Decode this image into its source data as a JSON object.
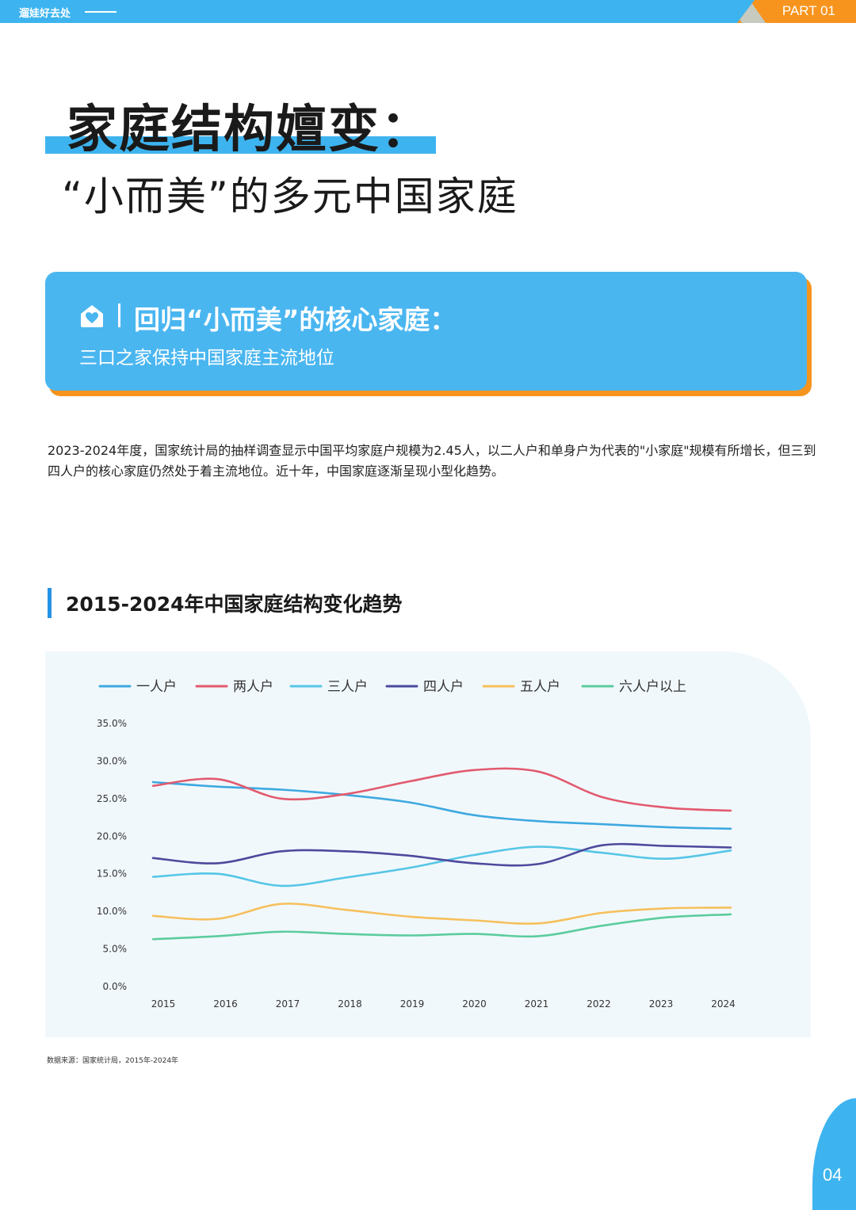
{
  "header": {
    "brand": "遛娃好去处",
    "part_label": "PART 01"
  },
  "title": {
    "main": "家庭结构嬗变：",
    "sub": "“小而美”的多元中国家庭"
  },
  "card": {
    "icon": "house-heart-icon",
    "title": "回归“小而美”的核心家庭：",
    "subtitle": "三口之家保持中国家庭主流地位"
  },
  "body_text": "2023-2024年度，国家统计局的抽样调查显示中国平均家庭户规模为2.45人，以二人户和单身户为代表的\"小家庭\"规模有所增长，但三到四人户的核心家庭仍然处于着主流地位。近十年，中国家庭逐渐呈现小型化趋势。",
  "section_title": "2015-2024年中国家庭结构变化趋势",
  "source": "数据来源：国家统计局，2015年-2024年",
  "page_number": "04",
  "colors": {
    "primary": "#3db4ef",
    "accent": "#f7941d"
  },
  "chart_data": {
    "type": "line",
    "title": "",
    "xlabel": "",
    "ylabel": "",
    "categories": [
      "2015",
      "2016",
      "2017",
      "2018",
      "2019",
      "2020",
      "2021",
      "2022",
      "2023",
      "2024"
    ],
    "ylim": [
      0,
      35
    ],
    "yticks": [
      "0.0%",
      "5.0%",
      "10.0%",
      "15.0%",
      "20.0%",
      "25.0%",
      "30.0%",
      "35.0%"
    ],
    "grid": false,
    "legend_position": "top",
    "series": [
      {
        "name": "一人户",
        "color": "#3ea9e0",
        "values": [
          27.2,
          26.6,
          26.2,
          25.5,
          24.5,
          22.8,
          22.0,
          21.6,
          21.2,
          21.0
        ]
      },
      {
        "name": "两人户",
        "color": "#e25a6e",
        "values": [
          26.7,
          27.6,
          25.0,
          25.6,
          27.3,
          28.8,
          28.6,
          25.2,
          23.8,
          23.4
        ]
      },
      {
        "name": "三人户",
        "color": "#56c6e6",
        "values": [
          14.6,
          15.0,
          13.4,
          14.5,
          15.8,
          17.5,
          18.6,
          17.8,
          17.0,
          18.1
        ]
      },
      {
        "name": "四人户",
        "color": "#4c4a9c",
        "values": [
          17.1,
          16.4,
          18.0,
          18.0,
          17.4,
          16.4,
          16.3,
          18.8,
          18.7,
          18.5
        ]
      },
      {
        "name": "五人户",
        "color": "#f6c05d",
        "values": [
          9.4,
          9.0,
          11.0,
          10.2,
          9.3,
          8.8,
          8.4,
          9.8,
          10.4,
          10.5
        ]
      },
      {
        "name": "六人户以上",
        "color": "#5ccc9e",
        "values": [
          6.3,
          6.7,
          7.3,
          7.0,
          6.8,
          7.0,
          6.7,
          8.1,
          9.2,
          9.6
        ]
      }
    ]
  }
}
